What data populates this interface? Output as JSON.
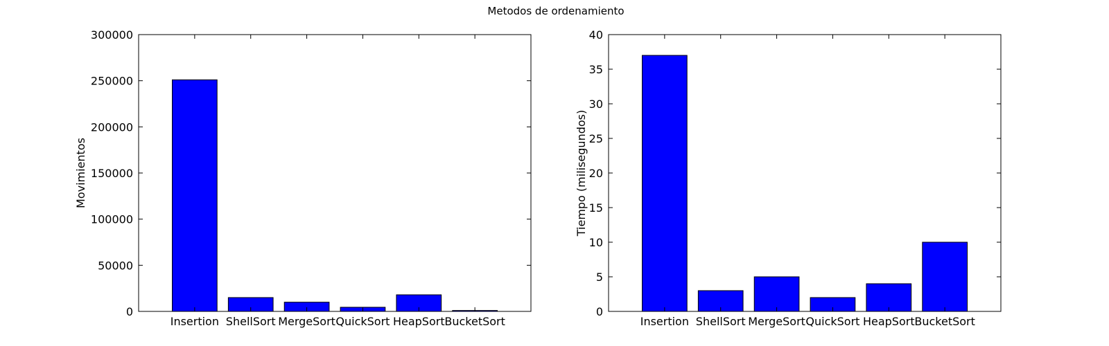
{
  "figure": {
    "suptitle": "Metodos de ordenamiento"
  },
  "chart_data": [
    {
      "type": "bar",
      "title": "",
      "categories": [
        "Insertion",
        "ShellSort",
        "MergeSort",
        "QuickSort",
        "HeapSort",
        "BucketSort"
      ],
      "values": [
        251000,
        15000,
        10000,
        4500,
        18000,
        1000
      ],
      "xlabel": "",
      "ylabel": "Movimientos",
      "ylim": [
        0,
        300000
      ],
      "yticks": [
        0,
        50000,
        100000,
        150000,
        200000,
        250000,
        300000
      ],
      "grid": false,
      "bar_color": "#0000ff"
    },
    {
      "type": "bar",
      "title": "",
      "categories": [
        "Insertion",
        "ShellSort",
        "MergeSort",
        "QuickSort",
        "HeapSort",
        "BucketSort"
      ],
      "values": [
        37,
        3,
        5,
        2,
        4,
        10
      ],
      "xlabel": "",
      "ylabel": "Tiempo (milisegundos)",
      "ylim": [
        0,
        40
      ],
      "yticks": [
        0,
        5,
        10,
        15,
        20,
        25,
        30,
        35,
        40
      ],
      "grid": false,
      "bar_color": "#0000ff"
    }
  ]
}
